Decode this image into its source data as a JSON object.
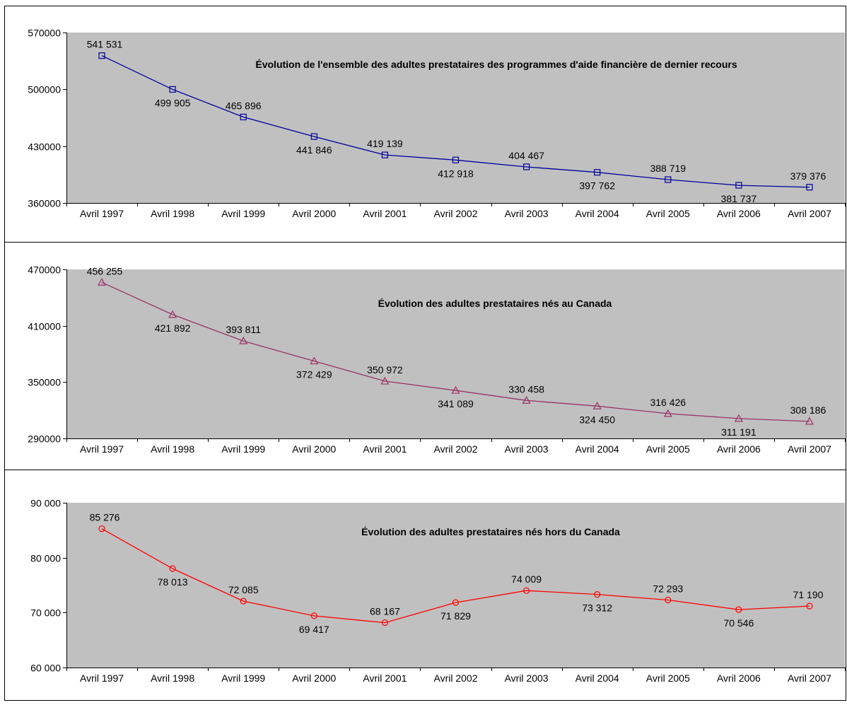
{
  "chart_data": [
    {
      "type": "line",
      "title": "Évolution de l'ensemble des adultes prestataires des programmes d'aide financière de dernier recours",
      "categories": [
        "Avril 1997",
        "Avril 1998",
        "Avril 1999",
        "Avril 2000",
        "Avril 2001",
        "Avril 2002",
        "Avril 2003",
        "Avril 2004",
        "Avril 2005",
        "Avril 2006",
        "Avril 2007"
      ],
      "series": [
        {
          "values": [
            541531,
            499905,
            465896,
            441846,
            419139,
            412918,
            404467,
            397762,
            388719,
            381737,
            379376
          ],
          "color": "#00009c",
          "marker": "square"
        }
      ],
      "data_labels": [
        "541 531",
        "499 905",
        "465 896",
        "441 846",
        "419 139",
        "412 918",
        "404 467",
        "397 762",
        "388 719",
        "381 737",
        "379 376"
      ],
      "label_side": [
        "above",
        "below",
        "above",
        "below",
        "above",
        "below",
        "above",
        "below",
        "above",
        "below",
        "above"
      ],
      "ylim": [
        360000,
        570000
      ],
      "yticks": [
        360000,
        430000,
        500000,
        570000
      ],
      "ytick_labels": [
        "360000",
        "430000",
        "500000",
        "570000"
      ],
      "grid": false,
      "plot_bg": "#c0c0c0"
    },
    {
      "type": "line",
      "title": "Évolution des adultes prestataires nés au Canada",
      "categories": [
        "Avril 1997",
        "Avril 1998",
        "Avril 1999",
        "Avril 2000",
        "Avril 2001",
        "Avril 2002",
        "Avril 2003",
        "Avril 2004",
        "Avril 2005",
        "Avril 2006",
        "Avril 2007"
      ],
      "series": [
        {
          "values": [
            456255,
            421892,
            393811,
            372429,
            350972,
            341089,
            330458,
            324450,
            316426,
            311191,
            308186
          ],
          "color": "#993366",
          "marker": "triangle"
        }
      ],
      "data_labels": [
        "456 255",
        "421 892",
        "393 811",
        "372 429",
        "350 972",
        "341 089",
        "330 458",
        "324 450",
        "316 426",
        "311 191",
        "308 186"
      ],
      "label_side": [
        "above",
        "below",
        "above",
        "below",
        "above",
        "below",
        "above",
        "below",
        "above",
        "below",
        "above"
      ],
      "ylim": [
        290000,
        470000
      ],
      "yticks": [
        290000,
        350000,
        410000,
        470000
      ],
      "ytick_labels": [
        "290000",
        "350000",
        "410000",
        "470000"
      ],
      "grid": false,
      "plot_bg": "#c0c0c0"
    },
    {
      "type": "line",
      "title": "Évolution des adultes prestataires nés hors du Canada",
      "categories": [
        "Avril 1997",
        "Avril 1998",
        "Avril 1999",
        "Avril 2000",
        "Avril 2001",
        "Avril 2002",
        "Avril 2003",
        "Avril 2004",
        "Avril 2005",
        "Avril 2006",
        "Avril 2007"
      ],
      "series": [
        {
          "values": [
            85276,
            78013,
            72085,
            69417,
            68167,
            71829,
            74009,
            73312,
            72293,
            70546,
            71190
          ],
          "color": "#ff0000",
          "marker": "circle"
        }
      ],
      "data_labels": [
        "85 276",
        "78 013",
        "72 085",
        "69 417",
        "68 167",
        "71 829",
        "74 009",
        "73 312",
        "72 293",
        "70 546",
        "71 190"
      ],
      "label_side": [
        "above",
        "below",
        "above",
        "below",
        "above",
        "below",
        "above",
        "below",
        "above",
        "below",
        "above"
      ],
      "ylim": [
        60000,
        90000
      ],
      "yticks": [
        60000,
        70000,
        80000,
        90000
      ],
      "ytick_labels": [
        "60 000",
        "70 000",
        "80 000",
        "90 000"
      ],
      "grid": false,
      "plot_bg": "#c0c0c0"
    }
  ]
}
